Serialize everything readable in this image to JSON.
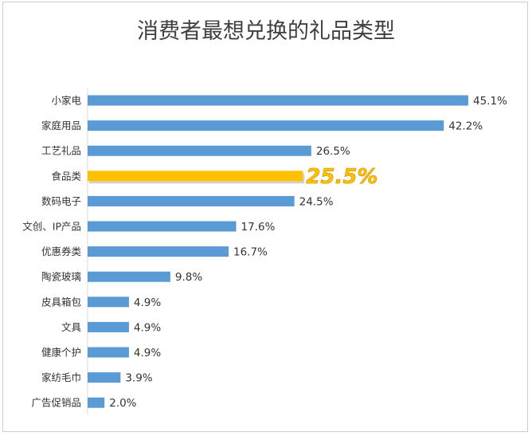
{
  "chart_data": {
    "type": "bar",
    "orientation": "horizontal",
    "title": "消费者最想兑换的礼品类型",
    "categories": [
      "小家电",
      "家庭用品",
      "工艺礼品",
      "食品类",
      "数码电子",
      "文创、IP产品",
      "优惠券类",
      "陶瓷玻璃",
      "皮具箱包",
      "文具",
      "健康个护",
      "家纺毛巾",
      "广告促销品"
    ],
    "values": [
      45.1,
      42.2,
      26.5,
      25.5,
      24.5,
      17.6,
      16.7,
      9.8,
      4.9,
      4.9,
      4.9,
      3.9,
      2.0
    ],
    "labels": [
      "45.1%",
      "42.2%",
      "26.5%",
      "25.5%",
      "24.5%",
      "17.6%",
      "16.7%",
      "9.8%",
      "4.9%",
      "4.9%",
      "4.9%",
      "3.9%",
      "2.0%"
    ],
    "highlight_index": 3,
    "xlim": [
      0,
      50
    ],
    "grid": false,
    "legend": "none",
    "colors": {
      "bar": "#5b9bd5",
      "highlight": "#ffc000",
      "axis": "#d9d9d9",
      "text": "#333333"
    }
  }
}
